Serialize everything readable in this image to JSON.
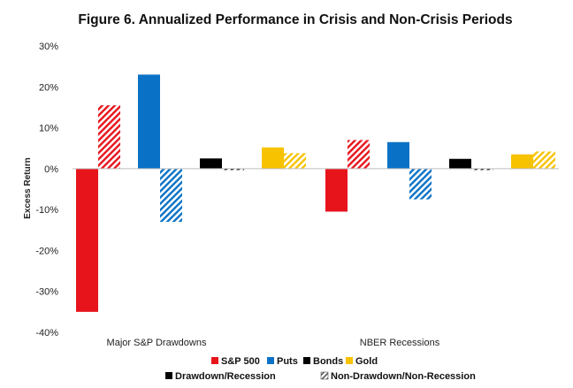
{
  "chart_data": {
    "type": "bar",
    "title": "Figure 6. Annualized Performance in Crisis and Non-Crisis Periods",
    "xlabel": "",
    "ylabel": "Excess Return",
    "ylim": [
      -40,
      30
    ],
    "yticks": [
      30,
      20,
      10,
      0,
      -10,
      -20,
      -30,
      -40
    ],
    "ytick_labels": [
      "30%",
      "20%",
      "10%",
      "0%",
      "-10%",
      "-20%",
      "-30%",
      "-40%"
    ],
    "grid": false,
    "categories": [
      "Major S&P Drawdowns",
      "NBER Recessions"
    ],
    "assets": [
      "S&P 500",
      "Puts",
      "Bonds",
      "Gold"
    ],
    "colors": {
      "S&P 500": "#e8141c",
      "Puts": "#0a72c6",
      "Bonds": "#000000",
      "Gold": "#f7c300"
    },
    "series": [
      {
        "name": "S&P 500",
        "period": "Drawdown/Recession",
        "values": [
          -35.0,
          -10.5
        ]
      },
      {
        "name": "S&P 500",
        "period": "Non-Drawdown/Non-Recession",
        "values": [
          15.5,
          7.0
        ]
      },
      {
        "name": "Puts",
        "period": "Drawdown/Recession",
        "values": [
          23.0,
          6.5
        ]
      },
      {
        "name": "Puts",
        "period": "Non-Drawdown/Non-Recession",
        "values": [
          -13.0,
          -7.5
        ]
      },
      {
        "name": "Bonds",
        "period": "Drawdown/Recession",
        "values": [
          2.5,
          2.4
        ]
      },
      {
        "name": "Bonds",
        "period": "Non-Drawdown/Non-Recession",
        "values": [
          -0.3,
          -0.2
        ]
      },
      {
        "name": "Gold",
        "period": "Drawdown/Recession",
        "values": [
          5.2,
          3.5
        ]
      },
      {
        "name": "Gold",
        "period": "Non-Drawdown/Non-Recession",
        "values": [
          3.8,
          4.2
        ]
      }
    ],
    "legend": {
      "placement": "bottom",
      "asset_items": [
        "S&P 500",
        "Puts",
        "Bonds",
        "Gold"
      ],
      "style_items": [
        "Drawdown/Recession",
        "Non-Drawdown/Non-Recession"
      ]
    }
  }
}
